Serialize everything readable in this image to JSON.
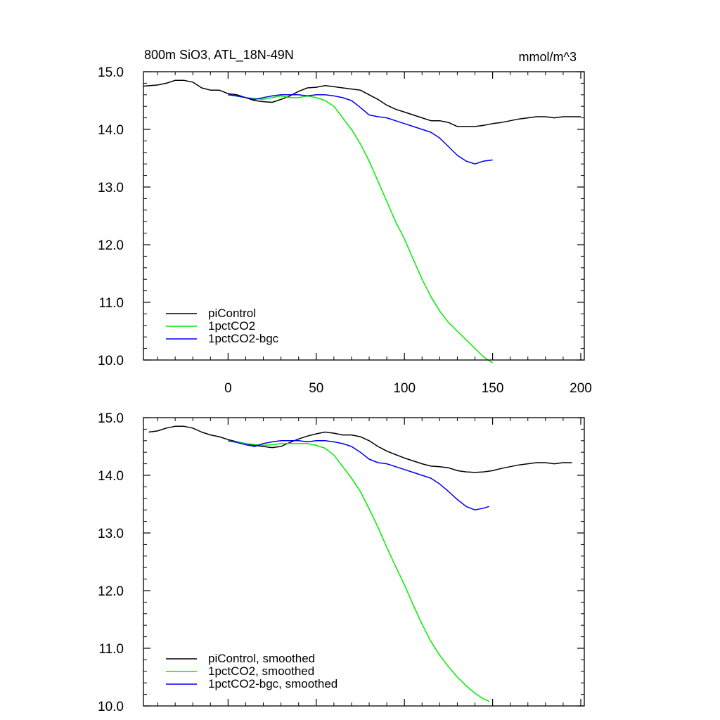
{
  "chart_data": [
    {
      "type": "line",
      "title": "800m SiO3, ATL_18N-49N",
      "units": "mmol/m^3",
      "xlim": [
        -48,
        202
      ],
      "ylim": [
        10.0,
        15.0
      ],
      "xticks": [
        0,
        50,
        100,
        150,
        200
      ],
      "xtick_labels": [
        "0",
        "50",
        "100",
        "150",
        "200"
      ],
      "yticks": [
        10.0,
        11.0,
        12.0,
        13.0,
        14.0,
        15.0
      ],
      "ytick_labels": [
        "10.0",
        "11.0",
        "12.0",
        "13.0",
        "14.0",
        "15.0"
      ],
      "legend_position": "bottom-left",
      "series": [
        {
          "name": "piControl",
          "color": "#000000",
          "x": [
            -48,
            -40,
            -35,
            -30,
            -25,
            -20,
            -15,
            -10,
            -5,
            0,
            5,
            10,
            15,
            20,
            25,
            30,
            35,
            40,
            45,
            50,
            55,
            60,
            65,
            70,
            75,
            80,
            85,
            90,
            95,
            100,
            105,
            110,
            115,
            120,
            125,
            130,
            135,
            140,
            145,
            150,
            155,
            160,
            165,
            170,
            175,
            180,
            185,
            190,
            195,
            200
          ],
          "values": [
            14.75,
            14.77,
            14.8,
            14.85,
            14.85,
            14.82,
            14.72,
            14.68,
            14.68,
            14.62,
            14.6,
            14.55,
            14.5,
            14.48,
            14.47,
            14.52,
            14.58,
            14.66,
            14.72,
            14.73,
            14.76,
            14.74,
            14.72,
            14.7,
            14.68,
            14.6,
            14.52,
            14.42,
            14.35,
            14.3,
            14.25,
            14.2,
            14.15,
            14.15,
            14.12,
            14.05,
            14.05,
            14.05,
            14.07,
            14.1,
            14.12,
            14.15,
            14.18,
            14.2,
            14.22,
            14.22,
            14.2,
            14.22,
            14.22,
            14.22
          ]
        },
        {
          "name": "1pctCO2",
          "color": "#00ee00",
          "x": [
            0,
            10,
            20,
            25,
            30,
            35,
            40,
            45,
            50,
            55,
            60,
            65,
            70,
            75,
            80,
            85,
            90,
            95,
            100,
            105,
            110,
            115,
            120,
            125,
            130,
            135,
            140,
            145,
            150
          ],
          "values": [
            14.6,
            14.55,
            14.52,
            14.55,
            14.58,
            14.55,
            14.55,
            14.58,
            14.55,
            14.5,
            14.4,
            14.2,
            14.0,
            13.75,
            13.45,
            13.1,
            12.75,
            12.4,
            12.1,
            11.75,
            11.4,
            11.1,
            10.85,
            10.65,
            10.5,
            10.35,
            10.2,
            10.05,
            9.95
          ]
        },
        {
          "name": "1pctCO2-bgc",
          "color": "#0000ee",
          "x": [
            0,
            5,
            10,
            15,
            20,
            25,
            30,
            35,
            40,
            45,
            50,
            55,
            60,
            65,
            70,
            75,
            80,
            85,
            90,
            95,
            100,
            105,
            110,
            115,
            120,
            125,
            130,
            135,
            140,
            145,
            150
          ],
          "values": [
            14.6,
            14.58,
            14.55,
            14.52,
            14.55,
            14.58,
            14.6,
            14.6,
            14.6,
            14.58,
            14.6,
            14.6,
            14.58,
            14.55,
            14.5,
            14.38,
            14.25,
            14.22,
            14.2,
            14.15,
            14.1,
            14.05,
            14.0,
            13.95,
            13.85,
            13.7,
            13.55,
            13.45,
            13.4,
            13.45,
            13.47
          ]
        }
      ]
    },
    {
      "type": "line",
      "title": "",
      "units": "",
      "xlim": [
        -48,
        202
      ],
      "ylim": [
        10.0,
        15.0
      ],
      "xticks": [
        0,
        50,
        100,
        150,
        200
      ],
      "xtick_labels": [],
      "yticks": [
        10.0,
        11.0,
        12.0,
        13.0,
        14.0,
        15.0
      ],
      "ytick_labels": [
        "10.0",
        "11.0",
        "12.0",
        "13.0",
        "14.0",
        "15.0"
      ],
      "legend_position": "bottom-left",
      "series": [
        {
          "name": "piControl, smoothed",
          "color": "#000000",
          "x": [
            -45,
            -40,
            -35,
            -30,
            -25,
            -20,
            -15,
            -10,
            -5,
            0,
            5,
            10,
            15,
            20,
            25,
            30,
            35,
            40,
            45,
            50,
            55,
            60,
            65,
            70,
            75,
            80,
            85,
            90,
            95,
            100,
            105,
            110,
            115,
            120,
            125,
            130,
            135,
            140,
            145,
            150,
            155,
            160,
            165,
            170,
            175,
            180,
            185,
            190,
            195
          ],
          "values": [
            14.75,
            14.77,
            14.82,
            14.85,
            14.85,
            14.82,
            14.75,
            14.7,
            14.67,
            14.62,
            14.58,
            14.55,
            14.52,
            14.5,
            14.48,
            14.5,
            14.57,
            14.63,
            14.68,
            14.72,
            14.75,
            14.73,
            14.7,
            14.7,
            14.67,
            14.6,
            14.5,
            14.42,
            14.36,
            14.3,
            14.25,
            14.2,
            14.16,
            14.15,
            14.13,
            14.08,
            14.06,
            14.05,
            14.06,
            14.08,
            14.12,
            14.15,
            14.18,
            14.2,
            14.22,
            14.22,
            14.2,
            14.22,
            14.22
          ]
        },
        {
          "name": "1pctCO2, smoothed",
          "color": "#00ee00",
          "x": [
            0,
            10,
            20,
            25,
            30,
            35,
            40,
            45,
            50,
            55,
            60,
            65,
            70,
            75,
            80,
            85,
            90,
            95,
            100,
            105,
            110,
            115,
            120,
            125,
            130,
            135,
            140,
            145,
            148
          ],
          "values": [
            14.6,
            14.55,
            14.52,
            14.53,
            14.55,
            14.55,
            14.55,
            14.55,
            14.52,
            14.47,
            14.35,
            14.15,
            13.95,
            13.72,
            13.42,
            13.1,
            12.75,
            12.42,
            12.1,
            11.75,
            11.42,
            11.12,
            10.88,
            10.68,
            10.5,
            10.35,
            10.22,
            10.12,
            10.08
          ]
        },
        {
          "name": "1pctCO2-bgc, smoothed",
          "color": "#0000ee",
          "x": [
            0,
            5,
            10,
            15,
            20,
            25,
            30,
            35,
            40,
            45,
            50,
            55,
            60,
            65,
            70,
            75,
            80,
            85,
            90,
            95,
            100,
            105,
            110,
            115,
            120,
            125,
            130,
            135,
            140,
            145,
            148
          ],
          "values": [
            14.6,
            14.57,
            14.53,
            14.5,
            14.55,
            14.58,
            14.6,
            14.6,
            14.6,
            14.58,
            14.6,
            14.6,
            14.58,
            14.55,
            14.5,
            14.4,
            14.28,
            14.22,
            14.2,
            14.15,
            14.1,
            14.05,
            14.0,
            13.95,
            13.85,
            13.72,
            13.58,
            13.46,
            13.4,
            13.43,
            13.46
          ]
        }
      ]
    }
  ]
}
